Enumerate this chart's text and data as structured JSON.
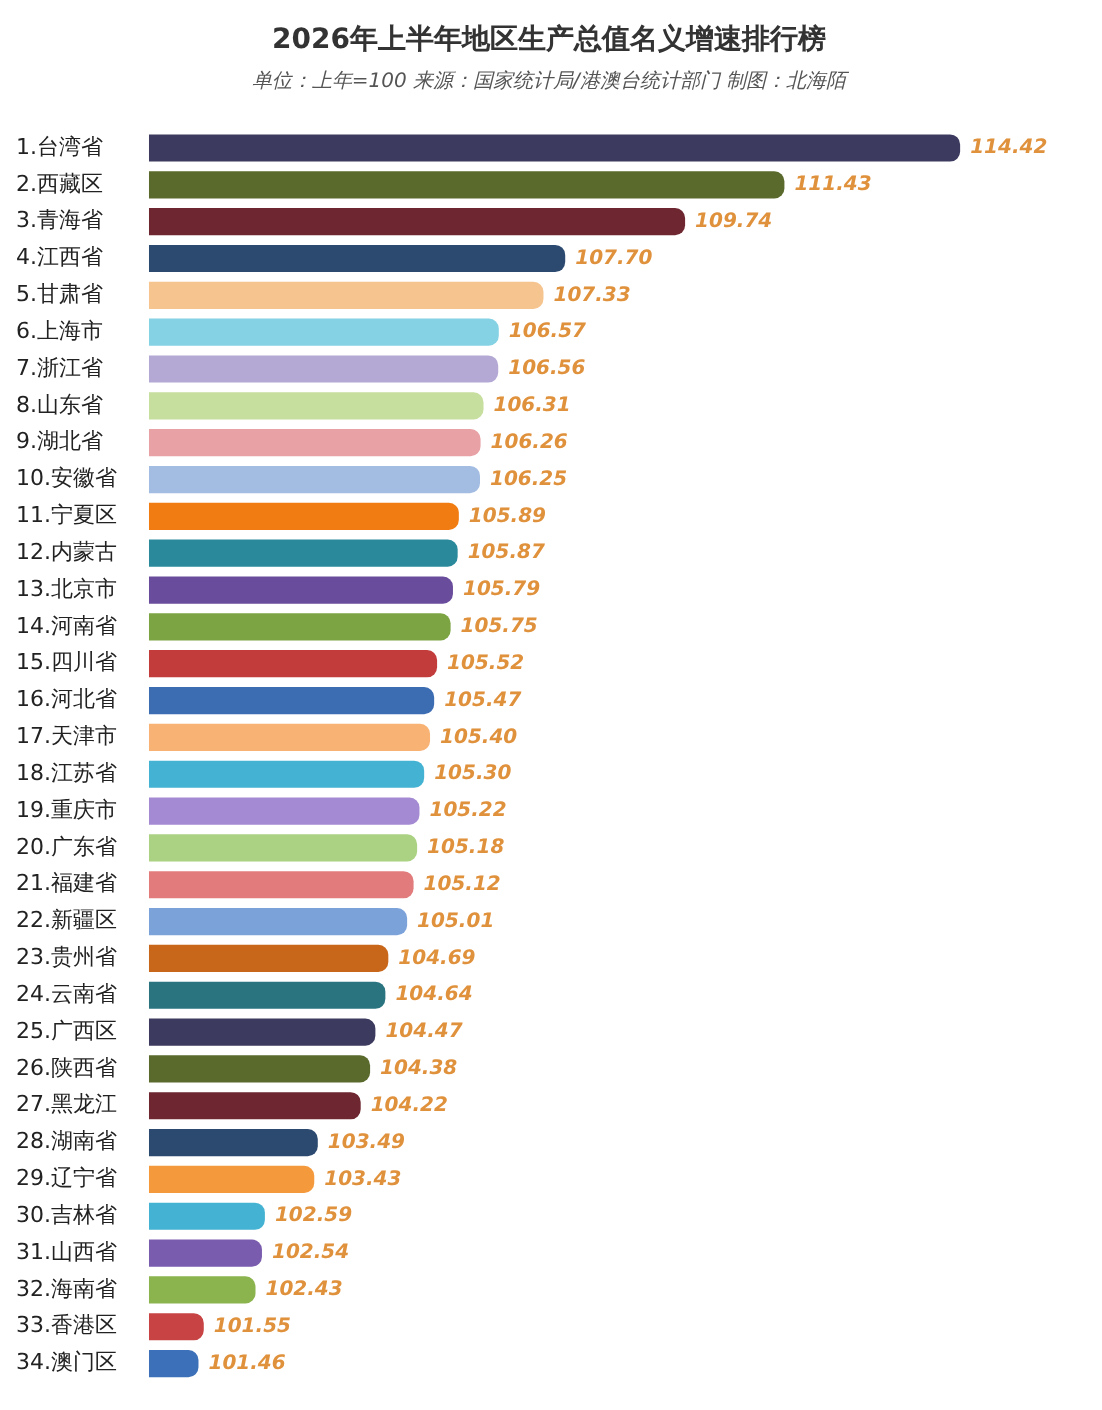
{
  "chart_data": {
    "type": "bar",
    "orientation": "horizontal",
    "title": "2026年上半年地区生产总值名义增速排行榜",
    "subtitle": "单位：上年=100 来源：国家统计局/港澳台统计部门 制图：北海陌",
    "categories": [
      "1.台湾省",
      "2.西藏区",
      "3.青海省",
      "4.江西省",
      "5.甘肃省",
      "6.上海市",
      "7.浙江省",
      "8.山东省",
      "9.湖北省",
      "10.安徽省",
      "11.宁夏区",
      "12.内蒙古",
      "13.北京市",
      "14.河南省",
      "15.四川省",
      "16.河北省",
      "17.天津市",
      "18.江苏省",
      "19.重庆市",
      "20.广东省",
      "21.福建省",
      "22.新疆区",
      "23.贵州省",
      "24.云南省",
      "25.广西区",
      "26.陕西省",
      "27.黑龙江",
      "28.湖南省",
      "29.辽宁省",
      "30.吉林省",
      "31.山西省",
      "32.海南省",
      "33.香港区",
      "34.澳门区"
    ],
    "values": [
      114.42,
      111.43,
      109.74,
      107.7,
      107.33,
      106.57,
      106.56,
      106.31,
      106.26,
      106.25,
      105.89,
      105.87,
      105.79,
      105.75,
      105.52,
      105.47,
      105.4,
      105.3,
      105.22,
      105.18,
      105.12,
      105.01,
      104.69,
      104.64,
      104.47,
      104.38,
      104.22,
      103.49,
      103.43,
      102.59,
      102.54,
      102.43,
      101.55,
      101.46
    ],
    "colors": [
      "#3c3a5e",
      "#5a6a2c",
      "#6e2630",
      "#2c4a70",
      "#f6c48e",
      "#84d2e4",
      "#b4a8d4",
      "#c6de9e",
      "#e8a2a6",
      "#a2bce2",
      "#f07c12",
      "#2a8a9c",
      "#6a4c9c",
      "#7ca442",
      "#c23c3c",
      "#3c6cb2",
      "#f8b274",
      "#44b2d2",
      "#a48ad2",
      "#aad282",
      "#e27c7c",
      "#7ca2da",
      "#c8661a",
      "#2a7480",
      "#3c3a5e",
      "#5a6a2c",
      "#6e2630",
      "#2c4a70",
      "#f59a3c",
      "#44b2d2",
      "#7a5cae",
      "#8cb44e",
      "#c84444",
      "#3c70b8"
    ],
    "value_labels": [
      "114.42",
      "111.43",
      "109.74",
      "107.70",
      "107.33",
      "106.57",
      "106.56",
      "106.31",
      "106.26",
      "106.25",
      "105.89",
      "105.87",
      "105.79",
      "105.75",
      "105.52",
      "105.47",
      "105.40",
      "105.30",
      "105.22",
      "105.18",
      "105.12",
      "105.01",
      "104.69",
      "104.64",
      "104.47",
      "104.38",
      "104.22",
      "103.49",
      "103.43",
      "102.59",
      "102.54",
      "102.43",
      "101.55",
      "101.46"
    ],
    "legend": false
  }
}
